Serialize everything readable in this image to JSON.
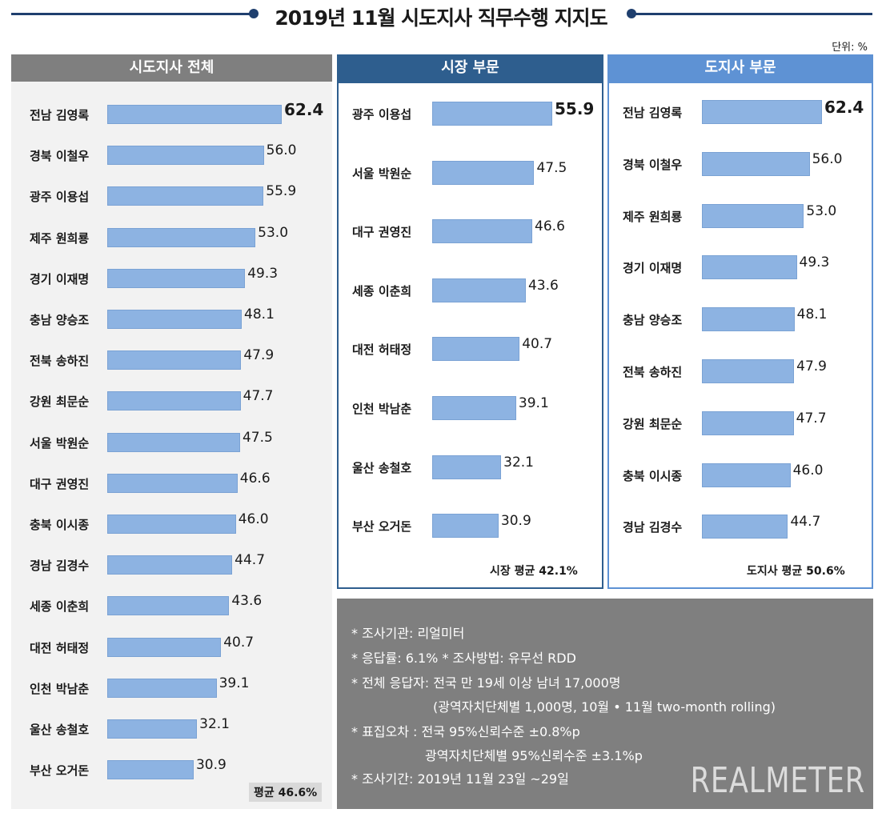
{
  "title": "2019년 11월 시도지사 직무수행 지지도",
  "unit": "단위: %",
  "panels": {
    "all": {
      "header": "시도지사 전체",
      "avg": "평균 46.6%"
    },
    "mayor": {
      "header": "시장 부문",
      "avg": "시장 평균 42.1%"
    },
    "governor": {
      "header": "도지사 부문",
      "avg": "도지사 평균 50.6%"
    }
  },
  "colors": {
    "header_all": "#7f7f7f",
    "header_mayor": "#2e5e8e",
    "header_governor": "#5e92d4",
    "bar": "#8db3e2",
    "notes_bg": "#7f7f7f"
  },
  "chart_data": [
    {
      "type": "bar",
      "orientation": "horizontal",
      "title": "시도지사 전체",
      "categories": [
        "전남 김영록",
        "경북 이철우",
        "광주 이용섭",
        "제주 원희룡",
        "경기 이재명",
        "충남 양승조",
        "전북 송하진",
        "강원 최문순",
        "서울 박원순",
        "대구 권영진",
        "충북 이시종",
        "경남 김경수",
        "세종 이춘희",
        "대전 허태정",
        "인천 박남춘",
        "울산 송철호",
        "부산 오거돈"
      ],
      "values": [
        62.4,
        56.0,
        55.9,
        53.0,
        49.3,
        48.1,
        47.9,
        47.7,
        47.5,
        46.6,
        46.0,
        44.7,
        43.6,
        40.7,
        39.1,
        32.1,
        30.9
      ],
      "labels": [
        "62.4",
        "56.0",
        "55.9",
        "53.0",
        "49.3",
        "48.1",
        "47.9",
        "47.7",
        "47.5",
        "46.6",
        "46.0",
        "44.7",
        "43.6",
        "40.7",
        "39.1",
        "32.1",
        "30.9"
      ]
    },
    {
      "type": "bar",
      "orientation": "horizontal",
      "title": "시장 부문",
      "categories": [
        "광주 이용섭",
        "서울 박원순",
        "대구 권영진",
        "세종 이춘희",
        "대전 허태정",
        "인천 박남춘",
        "울산 송철호",
        "부산 오거돈"
      ],
      "values": [
        55.9,
        47.5,
        46.6,
        43.6,
        40.7,
        39.1,
        32.1,
        30.9
      ],
      "labels": [
        "55.9",
        "47.5",
        "46.6",
        "43.6",
        "40.7",
        "39.1",
        "32.1",
        "30.9"
      ]
    },
    {
      "type": "bar",
      "orientation": "horizontal",
      "title": "도지사 부문",
      "categories": [
        "전남 김영록",
        "경북 이철우",
        "제주 원희룡",
        "경기 이재명",
        "충남 양승조",
        "전북 송하진",
        "강원 최문순",
        "충북 이시종",
        "경남 김경수"
      ],
      "values": [
        62.4,
        56.0,
        53.0,
        49.3,
        48.1,
        47.9,
        47.7,
        46.0,
        44.7
      ],
      "labels": [
        "62.4",
        "56.0",
        "53.0",
        "49.3",
        "48.1",
        "47.9",
        "47.7",
        "46.0",
        "44.7"
      ]
    }
  ],
  "notes": [
    "* 조사기관: 리얼미터",
    "* 응답률: 6.1% * 조사방법: 유무선 RDD",
    "* 전체 응답자: 전국 만 19세 이상 남녀 17,000명",
    "(광역자치단체별 1,000명, 10월 • 11월 two-month rolling)",
    "* 표집오차 : 전국 95%신뢰수준 ±0.8%p",
    "광역자치단체별 95%신뢰수준 ±3.1%p",
    "* 조사기간: 2019년 11월 23일 ~29일"
  ],
  "logo": "REALMETER"
}
